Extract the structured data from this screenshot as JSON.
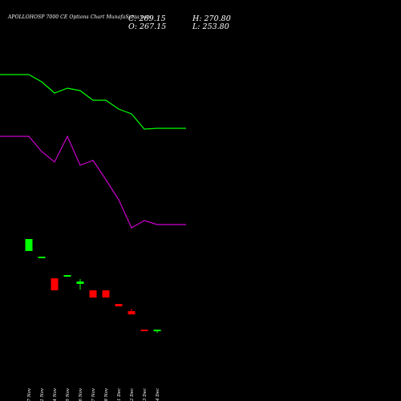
{
  "header": {
    "title": "APOLLOHOSP 7000 CE Options Chart MunafaSutra.com",
    "close": "C: 269.15",
    "open": "O: 267.15",
    "high": "H: 270.80",
    "low": "L: 253.80"
  },
  "chart_data": {
    "type": "candlestick",
    "categories": [
      "17 Nov",
      "21 Nov",
      "24 Nov",
      "25 Nov",
      "26 Nov",
      "27 Nov",
      "28 Nov",
      "01 Dec",
      "02 Dec",
      "03 Dec",
      "04 Dec"
    ],
    "candles": [
      {
        "date": "17 Nov",
        "open": 1005,
        "close": 1230,
        "high": 1230,
        "low": 1005,
        "color": "#00ff00"
      },
      {
        "date": "21 Nov",
        "open": 900,
        "close": 900,
        "high": 900,
        "low": 900,
        "color": "#00ff00"
      },
      {
        "date": "24 Nov",
        "open": 495,
        "close": 270,
        "high": 495,
        "low": 270,
        "color": "#ff0000"
      },
      {
        "date": "25 Nov",
        "open": 555,
        "close": 555,
        "high": 555,
        "low": 555,
        "color": "#00ff00"
      },
      {
        "date": "26 Nov",
        "open": 390,
        "close": 435,
        "high": 480,
        "low": 285,
        "color": "#00ff00"
      },
      {
        "date": "27 Nov",
        "open": 270,
        "close": 135,
        "high": 270,
        "low": 135,
        "color": "#ff0000"
      },
      {
        "date": "28 Nov",
        "open": 270,
        "close": 135,
        "high": 270,
        "low": 135,
        "color": "#ff0000"
      },
      {
        "date": "01 Dec",
        "open": 15,
        "close": -30,
        "high": 15,
        "low": -30,
        "color": "#ff0000"
      },
      {
        "date": "02 Dec",
        "open": -120,
        "close": -180,
        "high": -75,
        "low": -180,
        "color": "#ff0000"
      },
      {
        "date": "03 Dec",
        "open": -465,
        "close": -480,
        "high": -465,
        "low": -480,
        "color": "#ff0000"
      },
      {
        "date": "04 Dec",
        "open": -480,
        "close": -465,
        "high": -465,
        "low": -525,
        "color": "#00ff00"
      }
    ],
    "series": [
      {
        "color": "#00ff00",
        "values": [
          4305,
          4170,
          3960,
          4050,
          4005,
          3825,
          3825,
          3660,
          3570,
          3285,
          3300
        ]
      },
      {
        "color": "#cc00cc",
        "values": [
          3150,
          2865,
          2670,
          3150,
          2610,
          2700,
          2340,
          1965,
          1440,
          1575,
          1500
        ]
      }
    ],
    "ylim": [
      -1500,
      5100
    ],
    "grid": false,
    "legend": "none",
    "background": "#000000"
  }
}
